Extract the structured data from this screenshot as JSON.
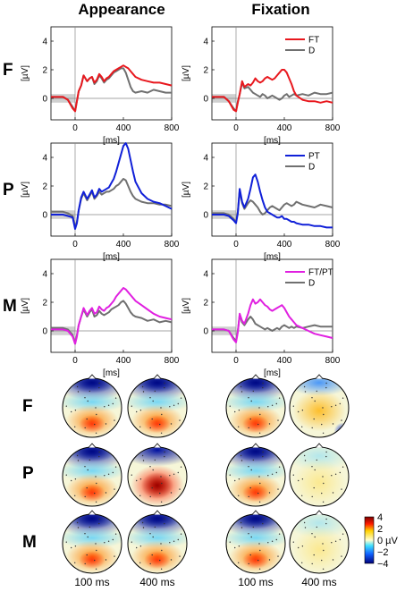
{
  "columns": [
    "Appearance",
    "Fixation"
  ],
  "rows": [
    {
      "label": "F",
      "color": "#e8181e",
      "legend": [
        "FT",
        "D"
      ]
    },
    {
      "label": "P",
      "color": "#1020d8",
      "legend": [
        "PT",
        "D"
      ]
    },
    {
      "label": "M",
      "color": "#e020e0",
      "legend": [
        "FT/PT",
        "D"
      ]
    }
  ],
  "difference_color": "#707070",
  "axes": {
    "ylabel": "[µV]",
    "xlabel": "[ms]",
    "xlim": [
      -200,
      800
    ],
    "ylim": [
      -1.5,
      5
    ],
    "xticks": [
      0,
      400,
      800
    ],
    "yticks": [
      0,
      2,
      4
    ]
  },
  "topo": {
    "row_labels": [
      "F",
      "P",
      "M"
    ],
    "time_labels": [
      "100 ms",
      "400 ms",
      "100 ms",
      "400 ms"
    ],
    "colorbar": {
      "ticks": [
        "4",
        "2",
        "0 µV",
        "−2",
        "−4"
      ],
      "range": [
        -4,
        4
      ]
    }
  },
  "chart_data": [
    {
      "type": "line",
      "panel": "F-Appearance",
      "series": [
        {
          "name": "FT",
          "x": [
            -200,
            -100,
            -60,
            -20,
            0,
            15,
            30,
            50,
            70,
            100,
            120,
            140,
            160,
            180,
            200,
            220,
            240,
            260,
            280,
            300,
            320,
            340,
            360,
            380,
            400,
            420,
            440,
            460,
            480,
            500,
            550,
            600,
            650,
            700,
            750,
            800
          ],
          "y": [
            0.1,
            0.1,
            -0.1,
            -0.7,
            -0.9,
            -0.2,
            0.5,
            0.9,
            1.6,
            1.2,
            1.4,
            1.5,
            1.1,
            1.3,
            1.7,
            1.5,
            1.2,
            1.4,
            1.5,
            1.7,
            1.9,
            2.0,
            2.1,
            2.2,
            2.3,
            2.2,
            2.1,
            1.9,
            1.7,
            1.5,
            1.3,
            1.2,
            1.1,
            1.1,
            1.0,
            0.9
          ]
        },
        {
          "name": "D",
          "x": [
            -200,
            -100,
            -60,
            -20,
            0,
            15,
            30,
            50,
            70,
            100,
            120,
            140,
            160,
            180,
            200,
            220,
            240,
            260,
            280,
            300,
            320,
            340,
            360,
            380,
            400,
            420,
            440,
            460,
            480,
            500,
            550,
            600,
            650,
            700,
            750,
            800
          ],
          "y": [
            0.1,
            0.1,
            -0.1,
            -0.6,
            -0.9,
            -0.2,
            0.5,
            0.9,
            1.6,
            1.2,
            1.4,
            1.5,
            1.0,
            1.2,
            1.6,
            1.4,
            1.1,
            1.3,
            1.4,
            1.6,
            1.8,
            1.9,
            2.0,
            2.1,
            2.1,
            1.8,
            1.3,
            0.8,
            0.5,
            0.4,
            0.5,
            0.4,
            0.6,
            0.5,
            0.4,
            0.4
          ]
        }
      ]
    },
    {
      "type": "line",
      "panel": "F-Fixation",
      "series": [
        {
          "name": "FT",
          "x": [
            -200,
            -100,
            -60,
            -20,
            0,
            15,
            30,
            50,
            70,
            100,
            120,
            140,
            160,
            180,
            200,
            220,
            240,
            260,
            280,
            300,
            320,
            340,
            360,
            380,
            400,
            420,
            440,
            460,
            480,
            500,
            550,
            600,
            650,
            700,
            750,
            800
          ],
          "y": [
            0.1,
            0.1,
            -0.2,
            -0.8,
            -0.9,
            -0.3,
            0.3,
            1.2,
            0.8,
            1.0,
            0.9,
            1.1,
            1.4,
            1.2,
            1.1,
            1.2,
            1.4,
            1.5,
            1.4,
            1.3,
            1.4,
            1.6,
            1.8,
            2.0,
            2.0,
            1.8,
            1.4,
            1.0,
            0.5,
            0.2,
            -0.1,
            -0.2,
            -0.2,
            -0.3,
            -0.2,
            -0.3
          ]
        },
        {
          "name": "D",
          "x": [
            -200,
            -100,
            -60,
            -20,
            0,
            15,
            30,
            50,
            70,
            100,
            120,
            140,
            160,
            180,
            200,
            220,
            240,
            260,
            280,
            300,
            320,
            340,
            360,
            380,
            400,
            420,
            440,
            460,
            480,
            500,
            550,
            600,
            650,
            700,
            750,
            800
          ],
          "y": [
            0.1,
            0.1,
            -0.2,
            -0.7,
            -0.9,
            -0.2,
            0.3,
            1.1,
            0.7,
            0.8,
            0.6,
            0.4,
            0.3,
            0.2,
            0.1,
            0.3,
            0.2,
            0.0,
            0.1,
            0.2,
            0.1,
            0.0,
            -0.1,
            0.0,
            0.2,
            0.3,
            0.1,
            0.2,
            0.3,
            0.2,
            0.3,
            0.2,
            0.4,
            0.3,
            0.3,
            0.4
          ]
        }
      ]
    },
    {
      "type": "line",
      "panel": "P-Appearance",
      "series": [
        {
          "name": "PT",
          "x": [
            -200,
            -100,
            -60,
            -20,
            0,
            15,
            30,
            50,
            70,
            100,
            120,
            140,
            160,
            180,
            200,
            220,
            240,
            260,
            280,
            300,
            320,
            340,
            360,
            380,
            400,
            420,
            440,
            460,
            480,
            500,
            550,
            600,
            650,
            700,
            750,
            800
          ],
          "y": [
            0.0,
            0.0,
            -0.1,
            -0.2,
            -1.0,
            -0.6,
            0.3,
            1.2,
            1.6,
            1.1,
            1.4,
            1.7,
            1.2,
            1.4,
            1.8,
            1.6,
            1.7,
            1.8,
            1.9,
            2.2,
            2.5,
            3.0,
            3.6,
            4.2,
            4.8,
            5.0,
            4.6,
            3.8,
            3.0,
            2.3,
            1.5,
            1.1,
            0.9,
            0.8,
            0.6,
            0.4
          ]
        },
        {
          "name": "D",
          "x": [
            -200,
            -100,
            -60,
            -20,
            0,
            15,
            30,
            50,
            70,
            100,
            120,
            140,
            160,
            180,
            200,
            220,
            240,
            260,
            280,
            300,
            320,
            340,
            360,
            380,
            400,
            420,
            440,
            460,
            480,
            500,
            550,
            600,
            650,
            700,
            750,
            800
          ],
          "y": [
            0.2,
            0.2,
            0.1,
            -0.1,
            -0.9,
            -0.5,
            0.3,
            1.1,
            1.5,
            1.0,
            1.3,
            1.6,
            1.1,
            1.3,
            1.6,
            1.4,
            1.5,
            1.6,
            1.6,
            1.7,
            1.8,
            2.0,
            2.1,
            2.3,
            2.5,
            2.4,
            2.0,
            1.6,
            1.3,
            1.1,
            0.9,
            0.8,
            0.8,
            0.7,
            0.7,
            0.6
          ]
        }
      ]
    },
    {
      "type": "line",
      "panel": "P-Fixation",
      "series": [
        {
          "name": "PT",
          "x": [
            -200,
            -100,
            -60,
            -20,
            0,
            15,
            30,
            50,
            70,
            100,
            120,
            140,
            160,
            180,
            200,
            220,
            240,
            260,
            280,
            300,
            320,
            340,
            360,
            380,
            400,
            420,
            440,
            460,
            480,
            500,
            550,
            600,
            650,
            700,
            750,
            800
          ],
          "y": [
            0.0,
            0.0,
            -0.1,
            -0.4,
            -0.6,
            0.1,
            1.8,
            0.9,
            0.5,
            1.1,
            1.8,
            2.6,
            2.8,
            2.3,
            1.6,
            1.0,
            0.5,
            0.2,
            0.1,
            0.0,
            -0.1,
            -0.2,
            -0.2,
            -0.1,
            -0.3,
            -0.3,
            -0.4,
            -0.5,
            -0.5,
            -0.6,
            -0.7,
            -0.7,
            -0.8,
            -0.8,
            -0.9,
            -0.9
          ]
        },
        {
          "name": "D",
          "x": [
            -200,
            -100,
            -60,
            -20,
            0,
            15,
            30,
            50,
            70,
            100,
            120,
            140,
            160,
            180,
            200,
            220,
            240,
            260,
            280,
            300,
            320,
            340,
            360,
            380,
            400,
            420,
            440,
            460,
            480,
            500,
            550,
            600,
            650,
            700,
            750,
            800
          ],
          "y": [
            0.1,
            0.1,
            0.0,
            -0.3,
            -0.5,
            0.2,
            1.7,
            0.8,
            0.4,
            0.8,
            1.0,
            0.9,
            0.7,
            0.5,
            0.2,
            0.0,
            0.1,
            0.3,
            0.5,
            0.6,
            0.5,
            0.4,
            0.3,
            0.5,
            0.7,
            0.8,
            0.7,
            0.6,
            0.7,
            0.9,
            0.7,
            0.6,
            0.5,
            0.7,
            0.6,
            0.5
          ]
        }
      ]
    },
    {
      "type": "line",
      "panel": "M-Appearance",
      "series": [
        {
          "name": "FT/PT",
          "x": [
            -200,
            -100,
            -60,
            -20,
            0,
            15,
            30,
            50,
            70,
            100,
            120,
            140,
            160,
            180,
            200,
            220,
            240,
            260,
            280,
            300,
            320,
            340,
            360,
            380,
            400,
            420,
            440,
            460,
            480,
            500,
            550,
            600,
            650,
            700,
            750,
            800
          ],
          "y": [
            0.1,
            0.1,
            0.0,
            -0.4,
            -0.9,
            -0.4,
            0.4,
            1.0,
            1.6,
            1.1,
            1.4,
            1.6,
            1.2,
            1.3,
            1.7,
            1.5,
            1.4,
            1.6,
            1.7,
            1.9,
            2.1,
            2.4,
            2.6,
            2.8,
            3.0,
            2.9,
            2.7,
            2.5,
            2.3,
            2.1,
            1.8,
            1.5,
            1.2,
            1.0,
            0.9,
            0.8
          ]
        },
        {
          "name": "D",
          "x": [
            -200,
            -100,
            -60,
            -20,
            0,
            15,
            30,
            50,
            70,
            100,
            120,
            140,
            160,
            180,
            200,
            220,
            240,
            260,
            280,
            300,
            320,
            340,
            360,
            380,
            400,
            420,
            440,
            460,
            480,
            500,
            550,
            600,
            650,
            700,
            750,
            800
          ],
          "y": [
            0.2,
            0.2,
            0.1,
            -0.3,
            -0.9,
            -0.3,
            0.4,
            1.0,
            1.5,
            1.0,
            1.3,
            1.5,
            1.0,
            1.1,
            1.4,
            1.2,
            1.1,
            1.2,
            1.3,
            1.5,
            1.6,
            1.7,
            1.8,
            2.0,
            2.1,
            1.9,
            1.6,
            1.3,
            1.1,
            1.0,
            0.9,
            0.7,
            0.8,
            0.6,
            0.7,
            0.6
          ]
        }
      ]
    },
    {
      "type": "line",
      "panel": "M-Fixation",
      "series": [
        {
          "name": "FT/PT",
          "x": [
            -200,
            -100,
            -60,
            -20,
            0,
            15,
            30,
            50,
            70,
            100,
            120,
            140,
            160,
            180,
            200,
            220,
            240,
            260,
            280,
            300,
            320,
            340,
            360,
            380,
            400,
            420,
            440,
            460,
            480,
            500,
            550,
            600,
            650,
            700,
            750,
            800
          ],
          "y": [
            0.1,
            0.1,
            0.0,
            -0.6,
            -0.8,
            -0.1,
            1.2,
            0.7,
            0.5,
            1.2,
            1.8,
            2.2,
            1.9,
            2.0,
            2.2,
            2.0,
            1.8,
            1.7,
            1.5,
            1.4,
            1.5,
            1.6,
            1.7,
            1.8,
            1.6,
            1.3,
            1.0,
            0.8,
            0.6,
            0.4,
            0.2,
            0.0,
            -0.2,
            -0.3,
            -0.4,
            -0.5
          ]
        },
        {
          "name": "D",
          "x": [
            -200,
            -100,
            -60,
            -20,
            0,
            15,
            30,
            50,
            70,
            100,
            120,
            140,
            160,
            180,
            200,
            220,
            240,
            260,
            280,
            300,
            320,
            340,
            360,
            380,
            400,
            420,
            440,
            460,
            480,
            500,
            550,
            600,
            650,
            700,
            750,
            800
          ],
          "y": [
            0.1,
            0.1,
            0.0,
            -0.5,
            -0.7,
            0.0,
            1.1,
            0.6,
            0.4,
            0.8,
            1.0,
            0.8,
            0.5,
            0.4,
            0.3,
            0.2,
            0.1,
            0.2,
            0.1,
            0.0,
            0.1,
            0.2,
            0.1,
            0.3,
            0.4,
            0.3,
            0.2,
            0.3,
            0.2,
            0.3,
            0.2,
            0.3,
            0.4,
            0.3,
            0.3,
            0.3
          ]
        }
      ]
    },
    {
      "type": "heatmap",
      "panel": "topography",
      "cells": [
        {
          "row": "F",
          "time": "100 ms",
          "condition": "Appearance",
          "pattern": "frontal-negative posterior-positive"
        },
        {
          "row": "F",
          "time": "400 ms",
          "condition": "Appearance",
          "pattern": "frontal-negative posterior-positive"
        },
        {
          "row": "F",
          "time": "100 ms",
          "condition": "Fixation",
          "pattern": "frontal-negative posterior-positive"
        },
        {
          "row": "F",
          "time": "400 ms",
          "condition": "Fixation",
          "pattern": "weak frontal-negative central-positive"
        },
        {
          "row": "P",
          "time": "100 ms",
          "condition": "Appearance",
          "pattern": "frontal-negative posterior-positive"
        },
        {
          "row": "P",
          "time": "400 ms",
          "condition": "Appearance",
          "pattern": "strong posterior-positive"
        },
        {
          "row": "P",
          "time": "100 ms",
          "condition": "Fixation",
          "pattern": "frontal-negative posterior-positive"
        },
        {
          "row": "P",
          "time": "400 ms",
          "condition": "Fixation",
          "pattern": "weak diffuse"
        },
        {
          "row": "M",
          "time": "100 ms",
          "condition": "Appearance",
          "pattern": "frontal-negative posterior-positive"
        },
        {
          "row": "M",
          "time": "400 ms",
          "condition": "Appearance",
          "pattern": "posterior-positive"
        },
        {
          "row": "M",
          "time": "100 ms",
          "condition": "Fixation",
          "pattern": "frontal-negative posterior-positive"
        },
        {
          "row": "M",
          "time": "400 ms",
          "condition": "Fixation",
          "pattern": "weak diffuse"
        }
      ]
    }
  ]
}
